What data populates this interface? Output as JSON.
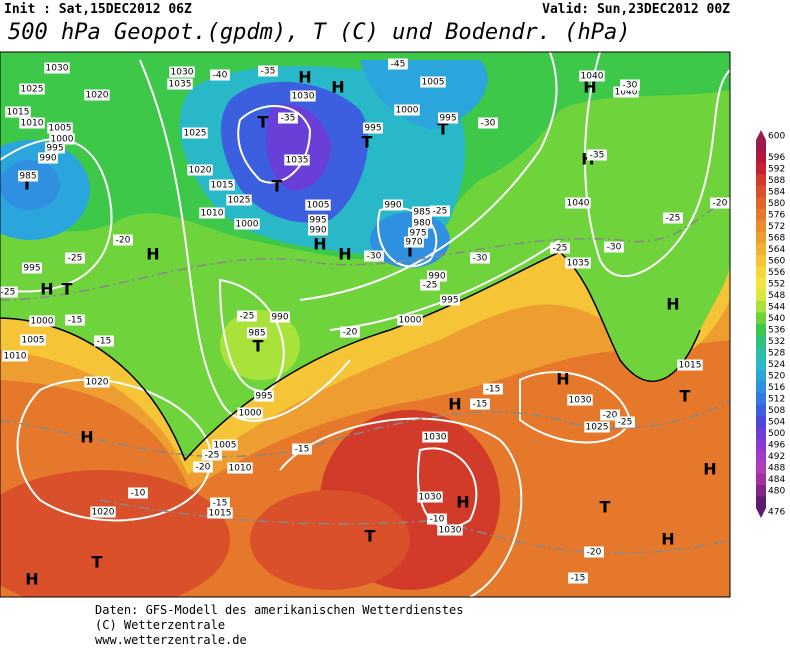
{
  "header": {
    "init": "Init : Sat,15DEC2012 06Z",
    "valid": "Valid: Sun,23DEC2012 00Z",
    "title": "500 hPa Geopot.(gpdm), T (C) und Bodendr. (hPa)"
  },
  "colorbar": {
    "labels": [
      600,
      596,
      592,
      588,
      584,
      580,
      576,
      572,
      568,
      564,
      560,
      556,
      552,
      548,
      544,
      540,
      536,
      532,
      528,
      524,
      520,
      516,
      512,
      508,
      504,
      500,
      496,
      492,
      488,
      484,
      480,
      476
    ],
    "colors": [
      "#9b1b4b",
      "#b5173a",
      "#c8202e",
      "#d23a2a",
      "#d9502a",
      "#e0652a",
      "#e5782a",
      "#ea8c2c",
      "#ee9e30",
      "#f2b133",
      "#f5c437",
      "#f7d63a",
      "#f3e63f",
      "#d7ea3b",
      "#a8e23a",
      "#6fd43c",
      "#3ec84a",
      "#2fc27a",
      "#2ac0a6",
      "#28b8c8",
      "#2aa6dc",
      "#2f90e2",
      "#3578e4",
      "#3c5fe0",
      "#4a48dc",
      "#6a3fd8",
      "#8a3ad2",
      "#a23ac8",
      "#b43cb8",
      "#a32fa0",
      "#82258a",
      "#5e1a6e"
    ]
  },
  "map": {
    "centers": [
      "H",
      "H",
      "H",
      "H",
      "H",
      "H",
      "H",
      "H",
      "H",
      "H",
      "H",
      "H",
      "H",
      "H",
      "H",
      "H",
      "T",
      "T",
      "T",
      "T",
      "T",
      "T",
      "T",
      "T",
      "T",
      "T",
      "T",
      "T"
    ],
    "isobars": [
      "1030",
      "1025",
      "1020",
      "1015",
      "1010",
      "1005",
      "1000",
      "995",
      "990",
      "985",
      "1035",
      "1030",
      "1025",
      "1020",
      "1015",
      "1010",
      "1035",
      "1030",
      "1025",
      "1000",
      "995",
      "1000",
      "1005",
      "995",
      "990",
      "985",
      "980",
      "975",
      "970",
      "1000",
      "995",
      "990",
      "985",
      "990",
      "995",
      "1000",
      "1005",
      "1010",
      "1015",
      "1020",
      "1020",
      "1010",
      "1005",
      "1000",
      "995",
      "1035",
      "1040",
      "1040",
      "1040",
      "1030",
      "1025",
      "1015",
      "1030",
      "1030",
      "1030",
      "1005",
      "995",
      "990"
    ],
    "temperatures": [
      "-35",
      "-40",
      "-45",
      "-35",
      "-30",
      "-35",
      "-30",
      "-25",
      "-30",
      "-25",
      "-30",
      "-25",
      "-30",
      "-25",
      "-20",
      "-20",
      "-25",
      "-25",
      "-15",
      "-15",
      "-20",
      "-25",
      "-25",
      "-20",
      "-15",
      "-15",
      "-15",
      "-10",
      "-15",
      "-10",
      "-20",
      "-15",
      "-20",
      "-25"
    ]
  },
  "footer": {
    "lines": [
      "Daten: GFS-Modell des amerikanischen Wetterdienstes",
      "(C) Wetterzentrale",
      "www.wetterzentrale.de"
    ]
  }
}
